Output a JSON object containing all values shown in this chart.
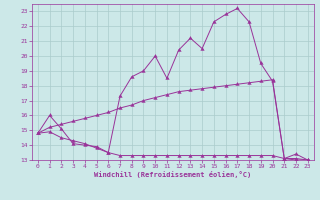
{
  "xlabel": "Windchill (Refroidissement éolien,°C)",
  "bg_color": "#cce8e8",
  "grid_color": "#aacccc",
  "line_color": "#993399",
  "xlim": [
    -0.5,
    23.5
  ],
  "ylim": [
    13,
    23.5
  ],
  "xticks": [
    0,
    1,
    2,
    3,
    4,
    5,
    6,
    7,
    8,
    9,
    10,
    11,
    12,
    13,
    14,
    15,
    16,
    17,
    18,
    19,
    20,
    21,
    22,
    23
  ],
  "yticks": [
    13,
    14,
    15,
    16,
    17,
    18,
    19,
    20,
    21,
    22,
    23
  ],
  "line1_x": [
    0,
    1,
    2,
    3,
    4,
    5,
    6,
    7,
    8,
    9,
    10,
    11,
    12,
    13,
    14,
    15,
    16,
    17,
    18,
    19,
    20,
    21,
    22,
    23
  ],
  "line1_y": [
    14.8,
    16.0,
    15.1,
    14.1,
    14.0,
    13.9,
    13.5,
    17.3,
    18.6,
    19.0,
    20.0,
    18.5,
    20.4,
    21.2,
    20.5,
    22.3,
    22.8,
    23.2,
    22.3,
    19.5,
    18.3,
    13.1,
    13.4,
    13.0
  ],
  "line2_x": [
    0,
    1,
    2,
    3,
    4,
    5,
    6,
    7,
    8,
    9,
    10,
    11,
    12,
    13,
    14,
    15,
    16,
    17,
    18,
    19,
    20,
    21,
    22,
    23
  ],
  "line2_y": [
    14.8,
    14.9,
    14.5,
    14.3,
    14.1,
    13.8,
    13.5,
    13.3,
    13.3,
    13.3,
    13.3,
    13.3,
    13.3,
    13.3,
    13.3,
    13.3,
    13.3,
    13.3,
    13.3,
    13.3,
    13.3,
    13.1,
    13.0,
    13.0
  ],
  "line3_x": [
    0,
    1,
    2,
    3,
    4,
    5,
    6,
    7,
    8,
    9,
    10,
    11,
    12,
    13,
    14,
    15,
    16,
    17,
    18,
    19,
    20,
    21,
    22,
    23
  ],
  "line3_y": [
    14.8,
    15.2,
    15.4,
    15.6,
    15.8,
    16.0,
    16.2,
    16.5,
    16.7,
    17.0,
    17.2,
    17.4,
    17.6,
    17.7,
    17.8,
    17.9,
    18.0,
    18.1,
    18.2,
    18.3,
    18.4,
    13.1,
    13.1,
    13.0
  ]
}
